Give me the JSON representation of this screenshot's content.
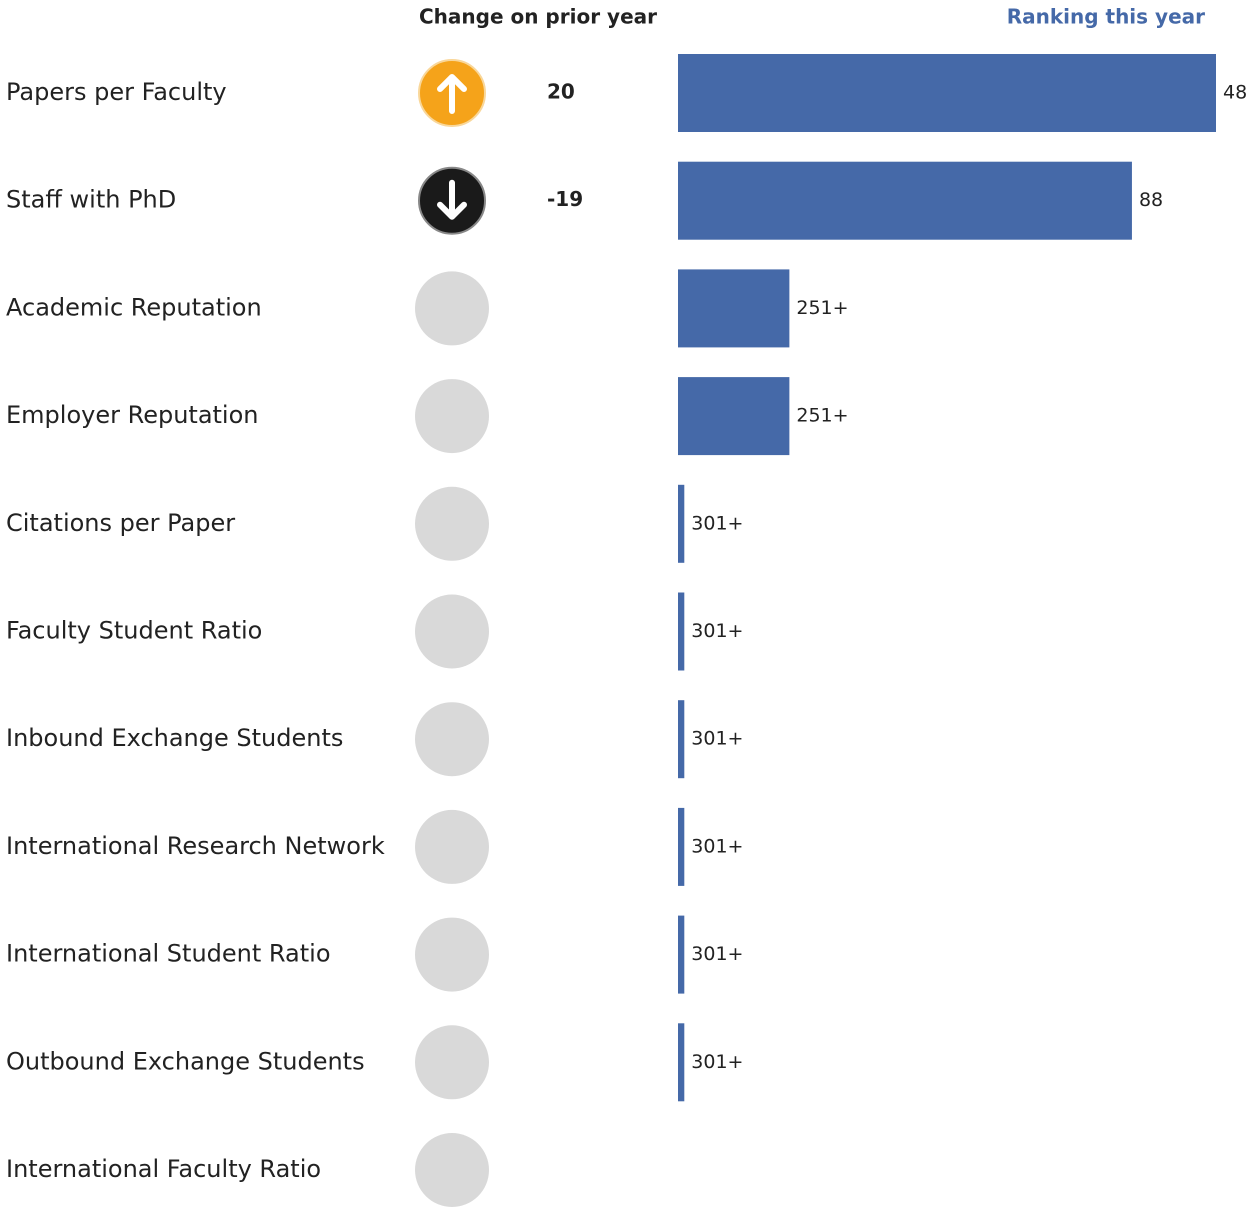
{
  "chart_data": {
    "type": "bar",
    "headers": {
      "change": "Change on prior year",
      "ranking": "Ranking this year"
    },
    "categories": [
      "Papers per Faculty",
      "Staff with PhD",
      "Academic Reputation",
      "Employer Reputation",
      "Citations per Paper",
      "Faculty Student Ratio",
      "Inbound Exchange Students",
      "International Research Network",
      "International Student Ratio",
      "Outbound Exchange Students",
      "International Faculty Ratio"
    ],
    "change": [
      20,
      -19,
      null,
      null,
      null,
      null,
      null,
      null,
      null,
      null,
      null
    ],
    "values": [
      48,
      88,
      251,
      251,
      301,
      301,
      301,
      301,
      301,
      301,
      null
    ],
    "value_labels": [
      "48",
      "88",
      "251+",
      "251+",
      "301+",
      "301+",
      "301+",
      "301+",
      "301+",
      "301+",
      null
    ],
    "color": "#4569a8",
    "xlim": [
      304,
      48
    ]
  }
}
